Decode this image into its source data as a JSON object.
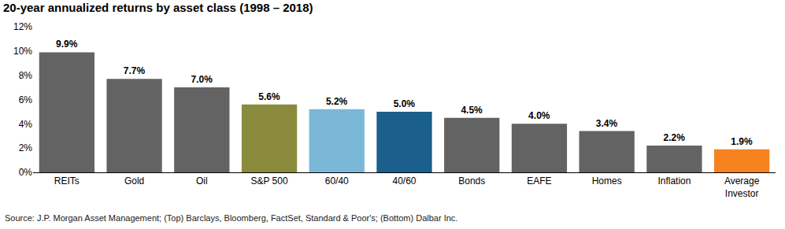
{
  "chart_data": {
    "type": "bar",
    "title": "20-year annualized returns by asset class (1998 – 2018)",
    "annotations": [
      "Source: J.P. Morgan Asset Management; (Top) Barclays, Bloomberg, FactSet, Standard & Poor's; (Bottom) Dalbar Inc."
    ],
    "categories": [
      "REITs",
      "Gold",
      "Oil",
      "S&P 500",
      "60/40",
      "40/60",
      "Bonds",
      "EAFE",
      "Homes",
      "Inflation",
      "Average Investor"
    ],
    "values": [
      9.9,
      7.7,
      7.0,
      5.6,
      5.2,
      5.0,
      4.5,
      4.0,
      3.4,
      2.2,
      1.9
    ],
    "value_labels": [
      "9.9%",
      "7.7%",
      "7.0%",
      "5.6%",
      "5.2%",
      "5.0%",
      "4.5%",
      "4.0%",
      "3.4%",
      "2.2%",
      "1.9%"
    ],
    "colors": [
      "#636363",
      "#636363",
      "#636363",
      "#8a8a3c",
      "#7bb8d8",
      "#1b5f8c",
      "#636363",
      "#636363",
      "#636363",
      "#636363",
      "#f5821f"
    ],
    "ylim": [
      0,
      12
    ],
    "yticks": [
      {
        "value": 0,
        "label": "0%"
      },
      {
        "value": 2,
        "label": "2%"
      },
      {
        "value": 4,
        "label": "4%"
      },
      {
        "value": 6,
        "label": "6%"
      },
      {
        "value": 8,
        "label": "8%"
      },
      {
        "value": 10,
        "label": "10%"
      },
      {
        "value": 12,
        "label": "12%"
      }
    ],
    "grid": false,
    "data_labels": true
  }
}
